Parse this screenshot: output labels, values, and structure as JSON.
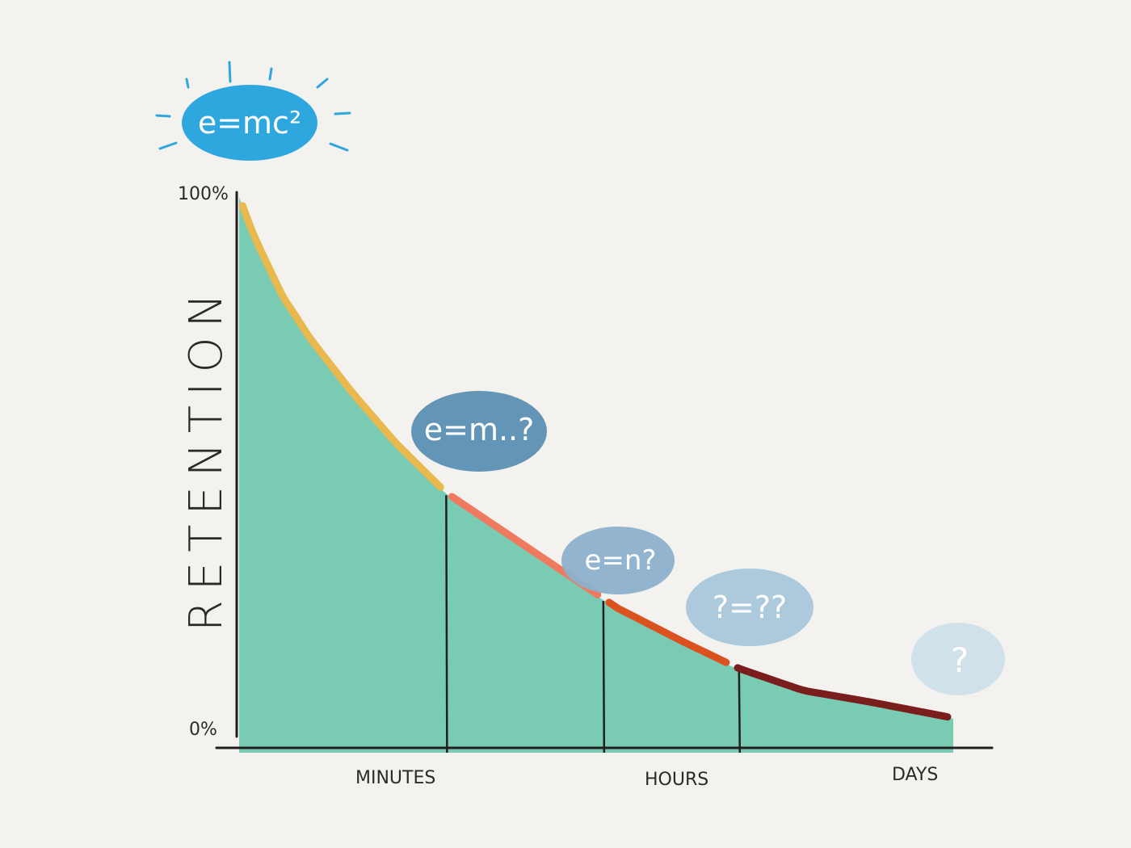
{
  "chart_data": {
    "type": "area",
    "title": "",
    "ylabel": "RETENTION",
    "xlabel": "",
    "y_ticks": [
      "100%",
      "0%"
    ],
    "x_ticks": [
      "MINUTES",
      "HOURS",
      "DAYS"
    ],
    "ylim": [
      0,
      100
    ],
    "grid": false,
    "legend": "none",
    "series": [
      {
        "x": [
          0,
          0.02,
          0.06,
          0.1,
          0.16,
          0.22,
          0.29,
          0.37,
          0.45,
          0.53,
          0.62,
          0.7,
          0.79,
          0.88,
          1.0
        ],
        "values": [
          100,
          93,
          82,
          74,
          64,
          55,
          46,
          39,
          32,
          25,
          19,
          14,
          10,
          8,
          5
        ]
      }
    ],
    "segments": [
      {
        "x_start": 0,
        "x_end": 0.29,
        "color": "#e9b84e"
      },
      {
        "x_start": 0.29,
        "x_end": 0.51,
        "color": "#ef7a5f"
      },
      {
        "x_start": 0.51,
        "x_end": 0.69,
        "color": "#d9521f"
      },
      {
        "x_start": 0.69,
        "x_end": 1.0,
        "color": "#7a1d1d"
      }
    ],
    "dividers_x": [
      0.29,
      0.51,
      0.7
    ],
    "annotations": [
      {
        "text": "e=mc²",
        "color": "#2ea6de"
      },
      {
        "text": "e=m..?",
        "color": "#5b8fb3"
      },
      {
        "text": "e=n?",
        "color": "#8cb0cb"
      },
      {
        "text": "?=??",
        "color": "#a9c6da"
      },
      {
        "text": "?",
        "color": "#cddfe9"
      }
    ],
    "colors": {
      "fill": "#79cbb3",
      "axis": "#1f1f1f",
      "background": "#f4f2ee"
    }
  }
}
